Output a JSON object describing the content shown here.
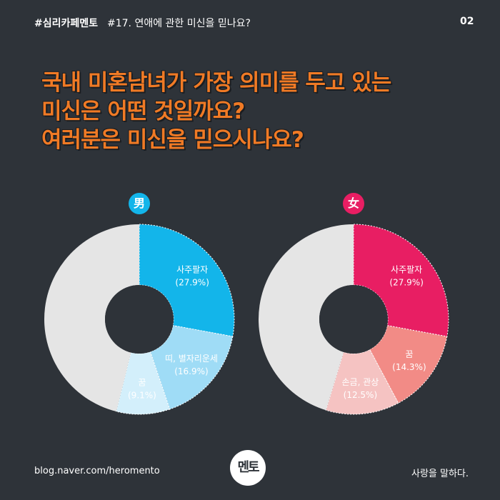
{
  "header": {
    "brand": "#심리카페멘토",
    "issue": "#17. 연애에 관한 미신을 믿나요?",
    "page": "02"
  },
  "headline": {
    "line1": "국내 미혼남녀가 가장 의미를 두고 있는",
    "line2": "미신은 어떤 것일까요?",
    "line3": "여러분은 미신을 믿으시나요?"
  },
  "badges": {
    "male": "男",
    "female": "女"
  },
  "colors": {
    "background": "#2e3339",
    "headline": "#f07a25",
    "male_accent": "#13b5ea",
    "female_accent": "#e81e63",
    "remainder": "#e5e5e5"
  },
  "chart_data": [
    {
      "type": "pie",
      "donut": true,
      "title": "男",
      "slices": [
        {
          "name": "사주팔자",
          "value": 27.9,
          "text": "(27.9%)",
          "color": "#13b5ea"
        },
        {
          "name": "띠, 별자리운세",
          "value": 16.9,
          "text": "(16.9%)",
          "color": "#9fdcf6"
        },
        {
          "name": "꿈",
          "value": 9.1,
          "text": "(9.1%)",
          "color": "#d3effb"
        },
        {
          "name": "",
          "value": 46.1,
          "text": "",
          "color": "#e5e5e5"
        }
      ]
    },
    {
      "type": "pie",
      "donut": true,
      "title": "女",
      "slices": [
        {
          "name": "사주팔자",
          "value": 27.9,
          "text": "(27.9%)",
          "color": "#e81e63"
        },
        {
          "name": "꿈",
          "value": 14.3,
          "text": "(14.3%)",
          "color": "#f28b86"
        },
        {
          "name": "손금, 관상",
          "value": 12.5,
          "text": "(12.5%)",
          "color": "#f5c3c2"
        },
        {
          "name": "",
          "value": 45.3,
          "text": "",
          "color": "#e5e5e5"
        }
      ]
    }
  ],
  "footer": {
    "url": "blog.naver.com/heromento",
    "logo_text": "멘토",
    "slogan": "사랑을 말하다."
  }
}
